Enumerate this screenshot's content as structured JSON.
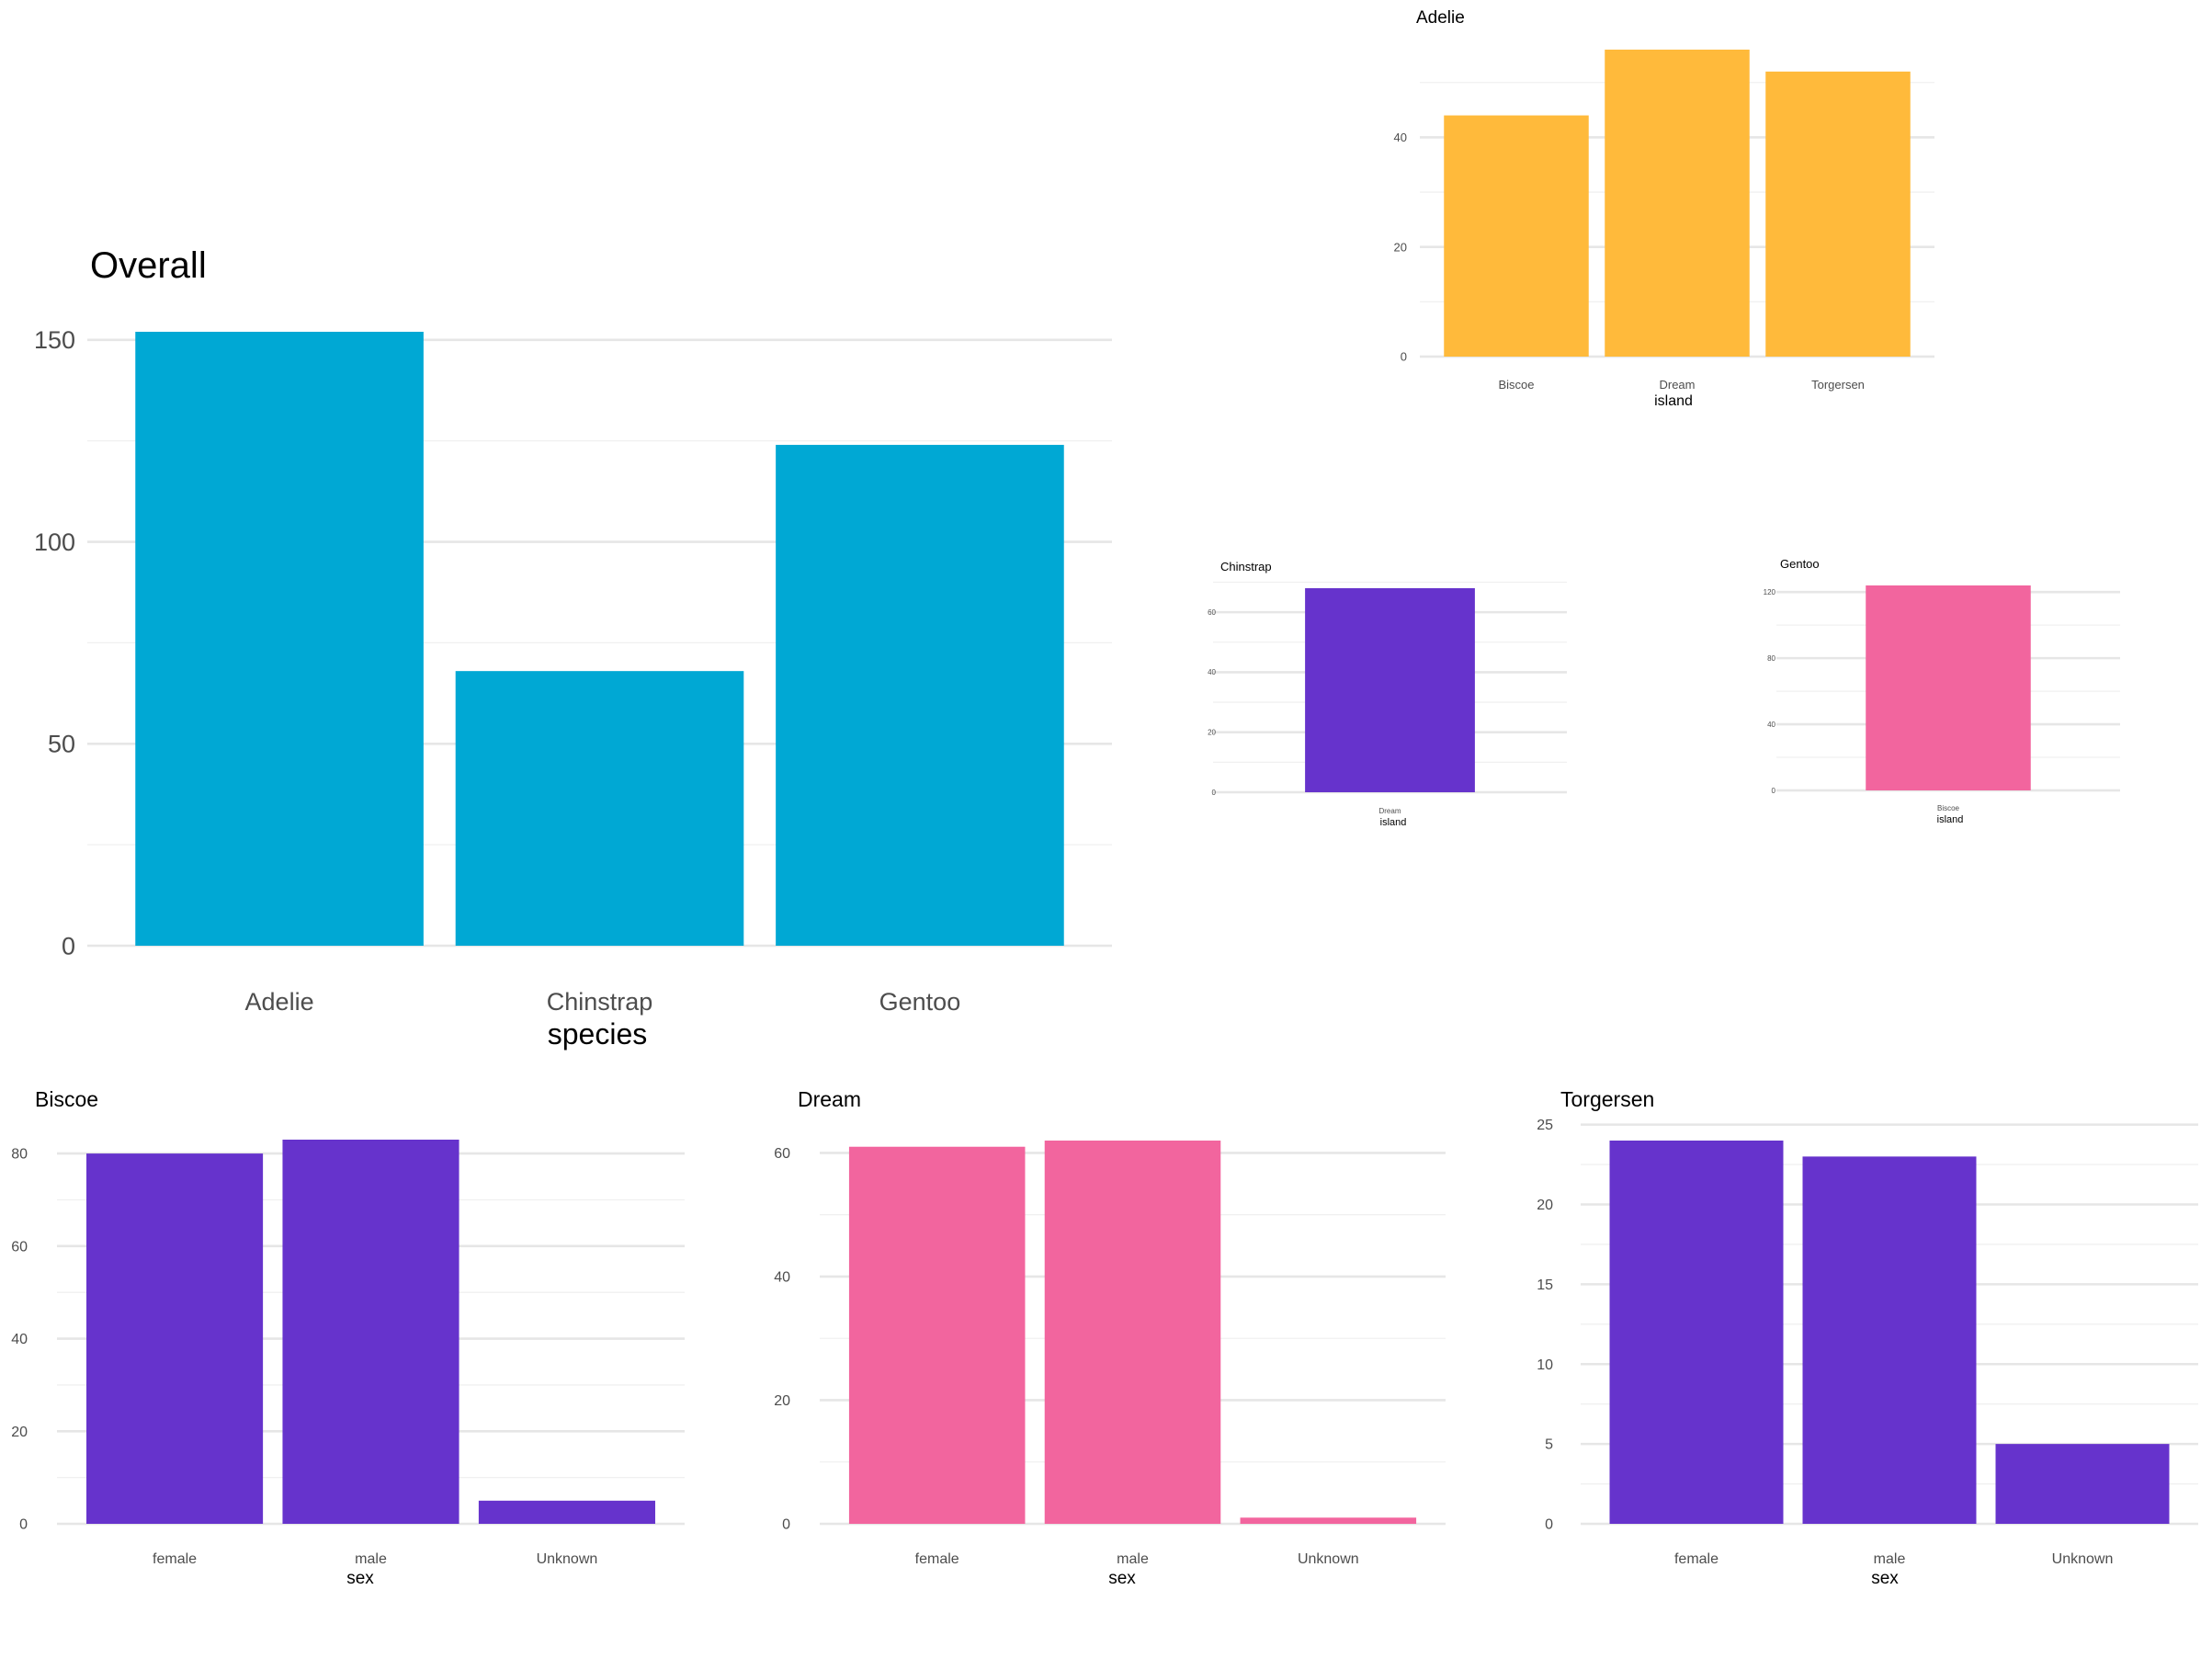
{
  "chart_data": [
    {
      "id": "overall",
      "type": "bar",
      "title": "Overall",
      "xlabel": "species",
      "ylabel": "",
      "categories": [
        "Adelie",
        "Chinstrap",
        "Gentoo"
      ],
      "values": [
        152,
        68,
        124
      ],
      "ylim": [
        0,
        152
      ],
      "yticks": [
        0,
        50,
        100,
        150
      ],
      "color": "#00A8D4",
      "grid": true
    },
    {
      "id": "adelie",
      "type": "bar",
      "title": "Adelie",
      "xlabel": "island",
      "ylabel": "",
      "categories": [
        "Biscoe",
        "Dream",
        "Torgersen"
      ],
      "values": [
        44,
        56,
        52
      ],
      "ylim": [
        0,
        56
      ],
      "yticks": [
        0,
        20,
        40
      ],
      "color": "#FFBA3B",
      "grid": true
    },
    {
      "id": "chinstrap",
      "type": "bar",
      "title": "Chinstrap",
      "xlabel": "island",
      "ylabel": "",
      "categories": [
        "Dream"
      ],
      "values": [
        68
      ],
      "ylim": [
        0,
        68
      ],
      "yticks": [
        0,
        20,
        40,
        60
      ],
      "color": "#6633CC",
      "grid": true
    },
    {
      "id": "gentoo",
      "type": "bar",
      "title": "Gentoo",
      "xlabel": "island",
      "ylabel": "",
      "categories": [
        "Biscoe"
      ],
      "values": [
        124
      ],
      "ylim": [
        0,
        124
      ],
      "yticks": [
        0,
        40,
        80,
        120
      ],
      "color": "#F2659E",
      "grid": true
    },
    {
      "id": "biscoe",
      "type": "bar",
      "title": "Biscoe",
      "xlabel": "sex",
      "ylabel": "",
      "categories": [
        "female",
        "male",
        "Unknown"
      ],
      "values": [
        80,
        83,
        5
      ],
      "ylim": [
        0,
        83
      ],
      "yticks": [
        0,
        20,
        40,
        60,
        80
      ],
      "color": "#6633CC",
      "grid": true
    },
    {
      "id": "dream",
      "type": "bar",
      "title": "Dream",
      "xlabel": "sex",
      "ylabel": "",
      "categories": [
        "female",
        "male",
        "Unknown"
      ],
      "values": [
        61,
        62,
        1
      ],
      "ylim": [
        0,
        62
      ],
      "yticks": [
        0,
        20,
        40,
        60
      ],
      "color": "#F2659E",
      "grid": true
    },
    {
      "id": "torgersen",
      "type": "bar",
      "title": "Torgersen",
      "xlabel": "sex",
      "ylabel": "",
      "categories": [
        "female",
        "male",
        "Unknown"
      ],
      "values": [
        24,
        23,
        5
      ],
      "ylim": [
        0,
        24
      ],
      "yticks": [
        0,
        5,
        10,
        15,
        20,
        25
      ],
      "color": "#6633CC",
      "grid": true
    }
  ]
}
